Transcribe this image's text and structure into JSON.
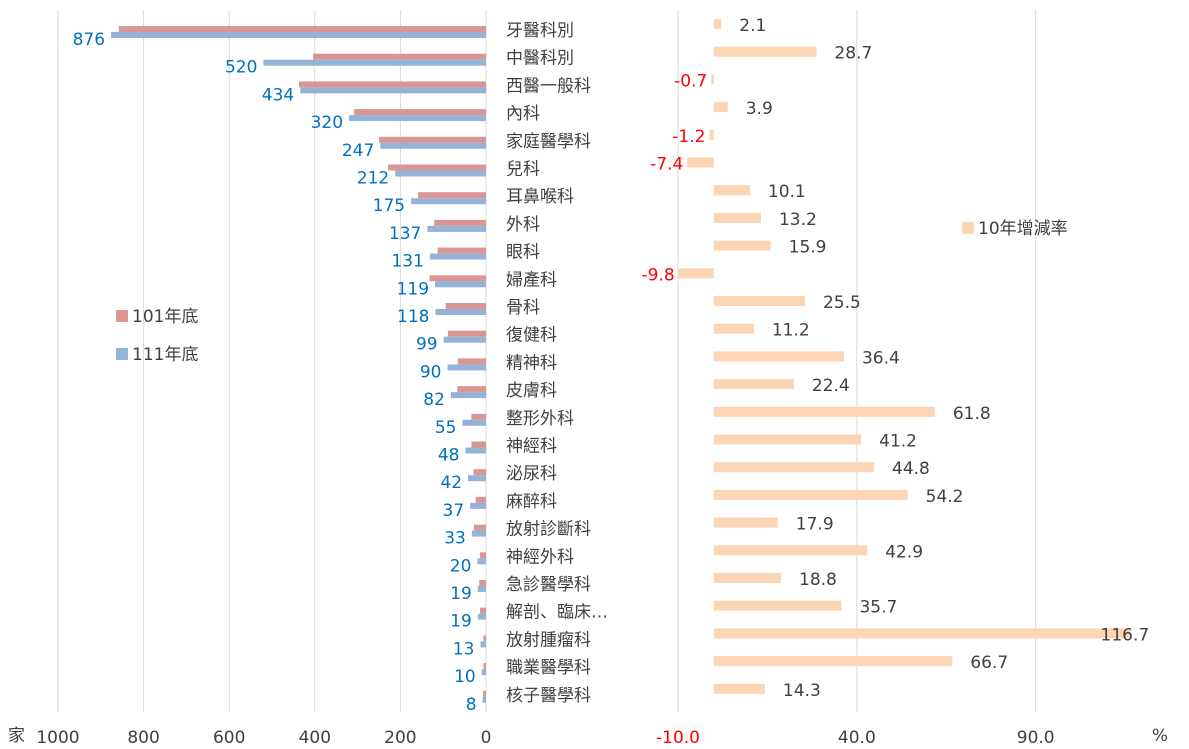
{
  "chart_data": [
    {
      "type": "bar",
      "orientation": "horizontal",
      "x_reversed": true,
      "xlabel": "家",
      "categories": [
        "牙醫科別",
        "中醫科別",
        "西醫一般科",
        "內科",
        "家庭醫學科",
        "兒科",
        "耳鼻喉科",
        "外科",
        "眼科",
        "婦產科",
        "骨科",
        "復健科",
        "精神科",
        "皮膚科",
        "整形外科",
        "神經科",
        "泌尿科",
        "麻醉科",
        "放射診斷科",
        "神經外科",
        "急診醫學科",
        "解剖、臨床…",
        "放射腫瘤科",
        "職業醫學科",
        "核子醫學科"
      ],
      "series": [
        {
          "name": "101年底",
          "color": "#d99694",
          "values": [
            858,
            404,
            437,
            308,
            250,
            229,
            159,
            121,
            113,
            132,
            94,
            89,
            66,
            67,
            34,
            34,
            29,
            24,
            28,
            14,
            16,
            14,
            6,
            6,
            7
          ]
        },
        {
          "name": "111年底",
          "color": "#95b3d7",
          "label_color": "#0070c0",
          "values": [
            876,
            520,
            434,
            320,
            247,
            212,
            175,
            137,
            131,
            119,
            118,
            99,
            90,
            82,
            55,
            48,
            42,
            37,
            33,
            20,
            19,
            19,
            13,
            10,
            8
          ]
        }
      ],
      "xlim": [
        0,
        1000
      ],
      "xticks": [
        0,
        200,
        400,
        600,
        800,
        1000
      ],
      "legend": "left"
    },
    {
      "type": "bar",
      "orientation": "horizontal",
      "xlabel": "%",
      "series": [
        {
          "name": "10年增減率",
          "color": "#fcd5b5",
          "values": [
            2.1,
            28.7,
            -0.7,
            3.9,
            -1.2,
            -7.4,
            10.1,
            13.2,
            15.9,
            -9.8,
            25.5,
            11.2,
            36.4,
            22.4,
            61.8,
            41.2,
            44.8,
            54.2,
            17.9,
            42.9,
            18.8,
            35.7,
            116.7,
            66.7,
            14.3
          ]
        }
      ],
      "negative_color": "#ff0000",
      "xlim": [
        -10,
        120
      ],
      "xticks": [
        {
          "value": -10,
          "label": "-10.0"
        },
        {
          "value": 40,
          "label": "40.0"
        },
        {
          "value": 90,
          "label": "90.0"
        }
      ],
      "legend": "right"
    }
  ]
}
